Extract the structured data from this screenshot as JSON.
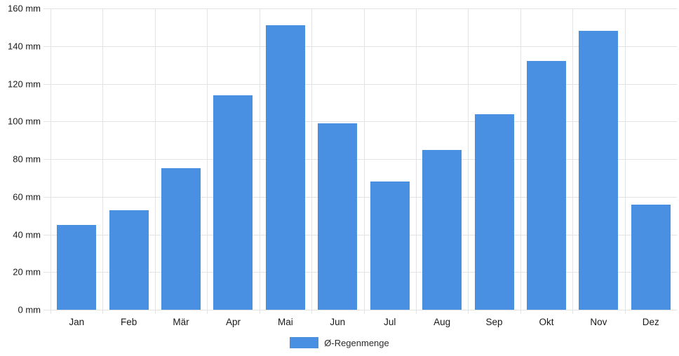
{
  "chart_data": {
    "type": "bar",
    "title": "",
    "xlabel": "",
    "ylabel": "",
    "unit": "mm",
    "categories": [
      "Jan",
      "Feb",
      "Mär",
      "Apr",
      "Mai",
      "Jun",
      "Jul",
      "Aug",
      "Sep",
      "Okt",
      "Nov",
      "Dez"
    ],
    "values": [
      45,
      53,
      75,
      114,
      151,
      99,
      68,
      85,
      104,
      132,
      148,
      56
    ],
    "series_name": "Ø-Regenmenge",
    "ylim": [
      0,
      160
    ],
    "ytick_step": 20,
    "ytick_labels": [
      "0 mm",
      "20 mm",
      "40 mm",
      "60 mm",
      "80 mm",
      "100 mm",
      "120 mm",
      "140 mm",
      "160 mm"
    ],
    "grid": "on",
    "legend_position": "bottom-center",
    "colors": {
      "bar": "#4a90e2",
      "grid": "#e3e3e3",
      "axis_text": "#1a1a1a",
      "legend_text": "#2b2b2b",
      "background": "#ffffff"
    }
  }
}
